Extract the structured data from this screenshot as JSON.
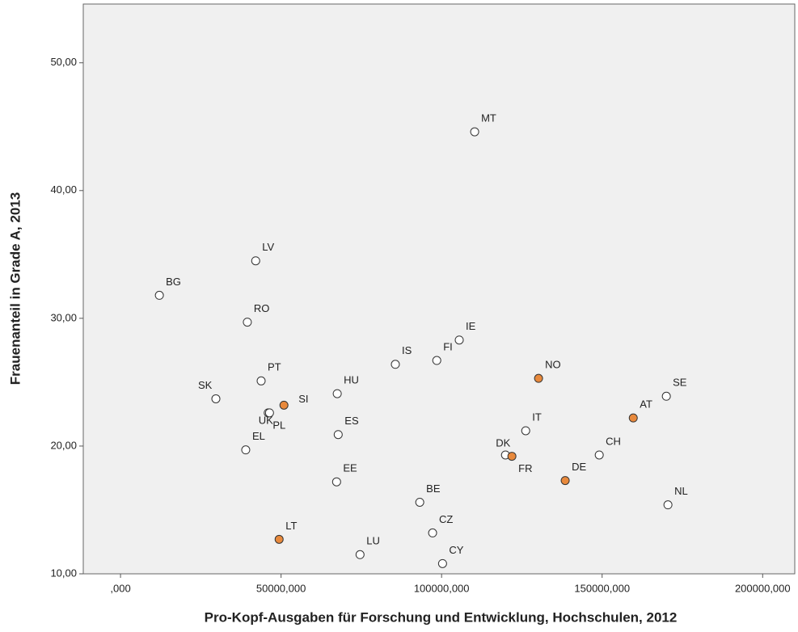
{
  "chart_data": {
    "type": "scatter",
    "x_label": "Pro-Kopf-Ausgaben für Forschung und Entwicklung, Hochschulen, 2012",
    "y_label": "Frauenanteil in Grade A, 2013",
    "labels": [
      "BG",
      "LV",
      "RO",
      "SK",
      "PT",
      "SI",
      "UK",
      "PL",
      "EL",
      "HU",
      "ES",
      "EE",
      "LT",
      "LU",
      "IS",
      "FI",
      "IE",
      "MT",
      "BE",
      "CZ",
      "CY",
      "NO",
      "DK",
      "FR",
      "IT",
      "DE",
      "CH",
      "AT",
      "SE",
      "NL"
    ],
    "x": [
      12100000,
      42100000,
      39500000,
      29700000,
      43800000,
      50900000,
      46000000,
      46400000,
      39000000,
      67500000,
      67800000,
      67300000,
      49400000,
      74600000,
      85600000,
      98500000,
      105500000,
      110300000,
      93200000,
      97200000,
      100300000,
      130200000,
      119900000,
      121900000,
      126200000,
      138500000,
      149100000,
      159700000,
      170000000,
      170500000
    ],
    "y": [
      31.8,
      34.5,
      29.7,
      23.7,
      25.1,
      23.2,
      22.6,
      22.6,
      19.7,
      24.1,
      20.9,
      17.2,
      12.7,
      11.5,
      26.4,
      26.7,
      28.3,
      44.6,
      15.6,
      13.2,
      10.8,
      25.3,
      19.3,
      19.2,
      21.2,
      17.3,
      19.3,
      22.2,
      23.9,
      15.4
    ],
    "colors": [
      "#ffffff",
      "#ffffff",
      "#ffffff",
      "#ffffff",
      "#ffffff",
      "#e8893c",
      "#ffffff",
      "#ffffff",
      "#ffffff",
      "#ffffff",
      "#ffffff",
      "#ffffff",
      "#e8893c",
      "#ffffff",
      "#ffffff",
      "#ffffff",
      "#ffffff",
      "#ffffff",
      "#ffffff",
      "#ffffff",
      "#ffffff",
      "#e8893c",
      "#ffffff",
      "#e8893c",
      "#ffffff",
      "#e8893c",
      "#ffffff",
      "#e8893c",
      "#ffffff",
      "#ffffff"
    ],
    "xlim": [
      -11600000,
      210000000
    ],
    "ylim": [
      10,
      54.6
    ],
    "xticks": [
      {
        "value": 0,
        "label": ",000"
      },
      {
        "value": 50000000,
        "label": "50000,000"
      },
      {
        "value": 100000000,
        "label": "100000,000"
      },
      {
        "value": 150000000,
        "label": "150000,000"
      },
      {
        "value": 200000000,
        "label": "200000,000"
      }
    ],
    "yticks": [
      {
        "value": 10,
        "label": "10,00"
      },
      {
        "value": 20,
        "label": "20,00"
      },
      {
        "value": 30,
        "label": "30,00"
      },
      {
        "value": 40,
        "label": "40,00"
      },
      {
        "value": 50,
        "label": "50,00"
      }
    ]
  }
}
